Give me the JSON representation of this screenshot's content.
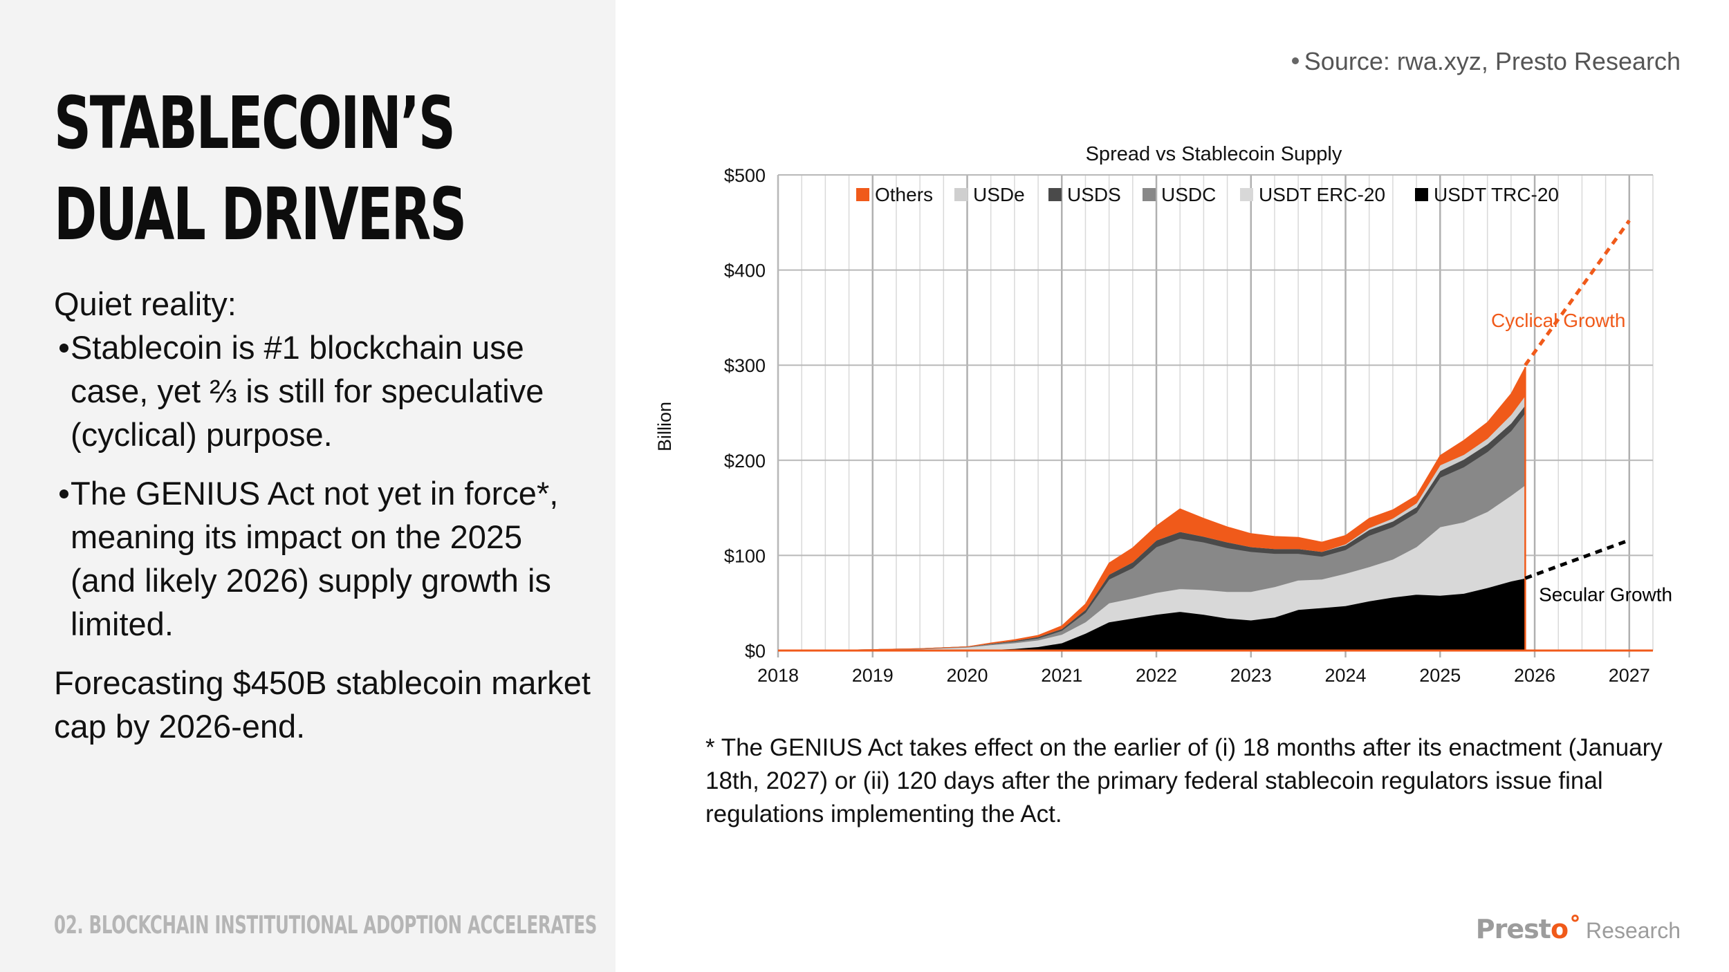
{
  "colors": {
    "accent": "#f05a1a",
    "grid": "#b8b8b8",
    "left_panel": "#f3f3f3",
    "cyclical_line": "#f05a1a",
    "secular_line": "#000000"
  },
  "slide": {
    "title_lines": [
      "STABLECOIN’S",
      "DUAL DRIVERS"
    ],
    "intro": "Quiet reality:",
    "bullets": [
      "Stablecoin is #1 blockchain use case, yet ⅔ is still for speculative (cyclical) purpose.",
      "The GENIUS Act not yet in force*, meaning its impact on the 2025 (and likely 2026) supply growth is limited."
    ],
    "forecast": "Forecasting $450B stablecoin market cap by 2026-end.",
    "section_footer": "02. BLOCKCHAIN INSTITUTIONAL ADOPTION ACCELERATES",
    "source": "Source: rwa.xyz, Presto Research",
    "footnote": "* The GENIUS Act takes effect on the earlier of (i) 18 months after its enactment (January 18th, 2027) or (ii) 120 days after the primary federal stablecoin regulators issue final regulations implementing the Act.",
    "brand": {
      "name": "Prest",
      "mark": "o˚",
      "sub": "Research"
    }
  },
  "chart_data": {
    "type": "area",
    "stacked": true,
    "title": "Spread vs Stablecoin Supply",
    "xlabel": "",
    "ylabel": "Billion",
    "xlim": [
      2018.0,
      2027.25
    ],
    "ylim": [
      0,
      500
    ],
    "grid": true,
    "legend_position": "top",
    "x_ticks": [
      "2018",
      "2019",
      "2020",
      "2021",
      "2022",
      "2023",
      "2024",
      "2025",
      "2026",
      "2027"
    ],
    "x_tick_values": [
      2018,
      2019,
      2020,
      2021,
      2022,
      2023,
      2024,
      2025,
      2026,
      2027
    ],
    "y_ticks": [
      "$0",
      "$100",
      "$200",
      "$300",
      "$400",
      "$500"
    ],
    "y_tick_values": [
      0,
      100,
      200,
      300,
      400,
      500
    ],
    "x": [
      2018.0,
      2018.75,
      2019.5,
      2020.0,
      2020.25,
      2020.5,
      2020.75,
      2021.0,
      2021.25,
      2021.5,
      2021.75,
      2022.0,
      2022.25,
      2022.5,
      2022.75,
      2023.0,
      2023.25,
      2023.5,
      2023.75,
      2024.0,
      2024.25,
      2024.5,
      2024.75,
      2025.0,
      2025.25,
      2025.5,
      2025.75,
      2025.9
    ],
    "series": [
      {
        "name": "USDT TRC-20",
        "color": "#000000",
        "values": [
          0,
          0,
          0,
          0.5,
          1,
          2,
          4,
          8,
          18,
          30,
          34,
          38,
          41,
          38,
          34,
          32,
          35,
          43,
          45,
          47,
          52,
          56,
          59,
          58,
          60,
          66,
          73,
          76
        ]
      },
      {
        "name": "USDT ERC-20",
        "color": "#d8d8d8",
        "values": [
          0,
          0.5,
          1.5,
          3,
          5,
          6,
          7,
          9,
          12,
          20,
          21,
          23,
          24,
          26,
          28,
          30,
          32,
          31,
          30,
          34,
          36,
          40,
          50,
          72,
          75,
          80,
          90,
          98
        ]
      },
      {
        "name": "USDC",
        "color": "#888888",
        "values": [
          0,
          0,
          0.5,
          0.5,
          1,
          1.5,
          2,
          4,
          10,
          25,
          32,
          48,
          53,
          50,
          46,
          42,
          35,
          28,
          24,
          25,
          33,
          34,
          36,
          52,
          58,
          63,
          68,
          76
        ]
      },
      {
        "name": "USDS",
        "color": "#4a4a4a",
        "values": [
          0,
          0,
          0,
          0,
          0.5,
          1,
          1.5,
          2,
          3,
          5,
          6,
          7,
          7,
          6,
          6,
          5,
          5,
          5,
          5,
          5,
          6,
          6,
          6,
          7,
          8,
          8,
          8,
          8
        ]
      },
      {
        "name": "USDe",
        "color": "#cfcfcf",
        "values": [
          0,
          0,
          0,
          0,
          0,
          0,
          0,
          0,
          0,
          0,
          0,
          0,
          0,
          0,
          0,
          0,
          0,
          0,
          0,
          1,
          2,
          3,
          4,
          6,
          5,
          6,
          9,
          10
        ]
      },
      {
        "name": "Others",
        "color": "#f05a1a",
        "values": [
          0,
          0,
          0,
          0,
          0.5,
          1,
          1.5,
          3,
          6,
          12,
          15,
          15,
          24,
          19,
          16,
          14,
          13,
          12,
          10,
          9,
          10,
          9,
          8,
          10,
          15,
          17,
          22,
          30
        ]
      }
    ],
    "projections": [
      {
        "name": "Cyclical Growth",
        "style": "dashed",
        "color": "#f05a1a",
        "from": [
          2025.9,
          300
        ],
        "to": [
          2027.0,
          452
        ]
      },
      {
        "name": "Secular Growth",
        "style": "dashed",
        "color": "#000000",
        "from": [
          2025.9,
          76
        ],
        "to": [
          2027.0,
          116
        ]
      }
    ],
    "annotations": [
      {
        "text": "Cyclical Growth",
        "color": "#f05a1a",
        "x": 2026.25,
        "y": 340
      },
      {
        "text": "Secular Growth",
        "color": "#000000",
        "x": 2026.75,
        "y": 52
      }
    ]
  }
}
